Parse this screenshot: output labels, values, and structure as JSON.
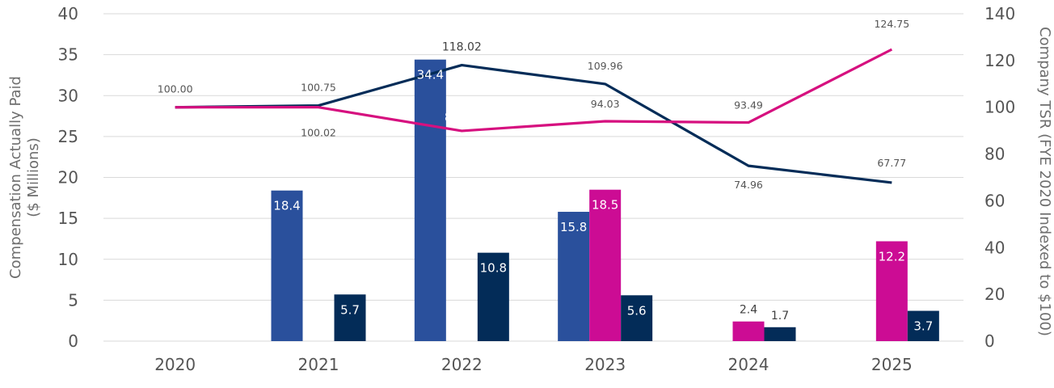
{
  "chart_data": {
    "type": "bar",
    "categories": [
      "2020",
      "2021",
      "2022",
      "2023",
      "2024",
      "2025"
    ],
    "y_left": {
      "label": "Compensation Actually Paid\n($ Millions)",
      "min": 0,
      "max": 40,
      "ticks": [
        0,
        5,
        10,
        15,
        20,
        25,
        30,
        35,
        40
      ]
    },
    "y_right": {
      "label": "Company TSR (FYE 2020 Indexed to $100)",
      "min": 0,
      "max": 140,
      "ticks": [
        0,
        20,
        40,
        60,
        80,
        100,
        120,
        140
      ]
    },
    "bar_series": [
      {
        "color": "#2a509c",
        "values": [
          null,
          18.4,
          34.4,
          15.8,
          null,
          null
        ],
        "labels": [
          "",
          "18.4",
          "34.4",
          "15.8",
          "",
          ""
        ]
      },
      {
        "color": "#cc0c94",
        "values": [
          null,
          null,
          null,
          18.5,
          2.4,
          12.2
        ],
        "labels": [
          "",
          "",
          "",
          "18.5",
          "2.4",
          "12.2"
        ]
      },
      {
        "color": "#032c58",
        "values": [
          null,
          5.7,
          10.8,
          5.6,
          1.7,
          3.7
        ],
        "labels": [
          "",
          "5.7",
          "10.8",
          "5.6",
          "1.7",
          "3.7"
        ]
      }
    ],
    "line_series": [
      {
        "color": "#032c58",
        "values": [
          100.0,
          100.75,
          118.02,
          109.96,
          74.96,
          67.77
        ],
        "labels": [
          "100.00",
          "100.75",
          "118.02",
          "109.96",
          "74.96",
          "67.77"
        ]
      },
      {
        "color": "#d6107f",
        "values": [
          100.0,
          100.02,
          89.9,
          94.03,
          93.49,
          124.75
        ],
        "labels": [
          "",
          "100.02",
          "89.90",
          "94.03",
          "93.49",
          "124.75"
        ]
      }
    ],
    "grid": true,
    "legend": "none"
  }
}
